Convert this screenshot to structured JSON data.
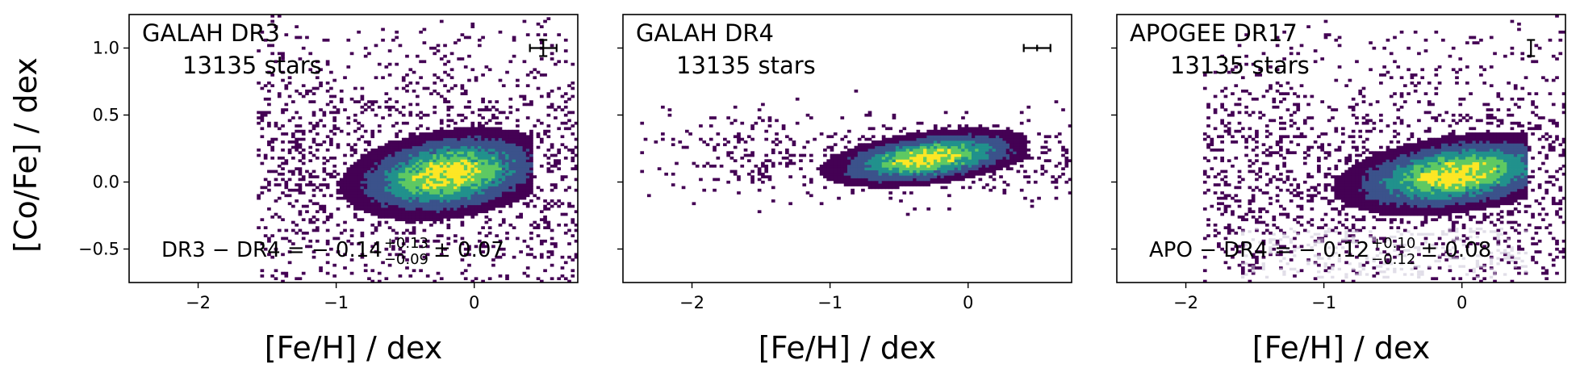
{
  "figure": {
    "ylabel": "[Co/Fe] / dex",
    "colors": {
      "low": "#440154",
      "mid1": "#3b528b",
      "mid2": "#21918c",
      "mid3": "#5ec962",
      "high": "#fde725",
      "ghost": "#c9c3d6"
    }
  },
  "chart_data": [
    {
      "type": "heatmap",
      "title": "GALAH DR3",
      "subtitle": "13135 stars",
      "xlabel": "[Fe/H] / dex",
      "ylabel": "[Co/Fe] / dex",
      "xlim": [
        -2.5,
        0.75
      ],
      "ylim": [
        -0.75,
        1.25
      ],
      "xticks": [
        -2,
        -1,
        0
      ],
      "xtick_labels": [
        "−2",
        "−1",
        "0"
      ],
      "yticks": [
        -0.5,
        0.0,
        0.5,
        1.0
      ],
      "ytick_labels": [
        "−0.5",
        "0.0",
        "0.5",
        "1.0"
      ],
      "annotation": {
        "lhs": "DR3 − DR4 = − 0.14",
        "sup": "+0.13",
        "sub": "−0.09",
        "rhs": "± 0.07"
      },
      "error_bar": {
        "x": 0.5,
        "y": 1.0,
        "xerr": 0.05,
        "yerr": 0.05
      },
      "density": {
        "peak": {
          "x": -0.2,
          "y": 0.05
        },
        "sigma_x": 0.35,
        "sigma_y": 0.15,
        "x_range": [
          -1.0,
          0.4
        ],
        "y_spread_outliers": 0.9
      }
    },
    {
      "type": "heatmap",
      "title": "GALAH DR4",
      "subtitle": "13135 stars",
      "xlabel": "[Fe/H] / dex",
      "xlim": [
        -2.5,
        0.75
      ],
      "ylim": [
        -0.75,
        1.25
      ],
      "xticks": [
        -2,
        -1,
        0
      ],
      "xtick_labels": [
        "−2",
        "−1",
        "0"
      ],
      "error_bar": {
        "x": 0.5,
        "y": 1.0,
        "xerr": 0.05,
        "yerr": 0.015
      },
      "density": {
        "peak": {
          "x": -0.3,
          "y": 0.17
        },
        "sigma_x": 0.35,
        "sigma_y": 0.09,
        "x_range": [
          -1.8,
          0.4
        ],
        "y_spread_outliers": 0.25
      }
    },
    {
      "type": "heatmap",
      "title": "APOGEE DR17",
      "subtitle": "13135 stars",
      "xlabel": "[Fe/H] / dex",
      "xlim": [
        -2.5,
        0.75
      ],
      "ylim": [
        -0.75,
        1.25
      ],
      "xticks": [
        -2,
        -1,
        0
      ],
      "xtick_labels": [
        "−2",
        "−1",
        "0"
      ],
      "annotation": {
        "lhs": "APO − DR4 = − 0.12",
        "sup": "+0.10",
        "sub": "−0.12",
        "rhs": "± 0.08"
      },
      "error_bar": {
        "x": 0.5,
        "y": 1.0,
        "xerr": 0.0,
        "yerr": 0.05
      },
      "density": {
        "peak": {
          "x": -0.05,
          "y": 0.05
        },
        "sigma_x": 0.4,
        "sigma_y": 0.13,
        "x_range": [
          -1.3,
          0.45
        ],
        "y_spread_outliers": 0.8
      }
    }
  ]
}
